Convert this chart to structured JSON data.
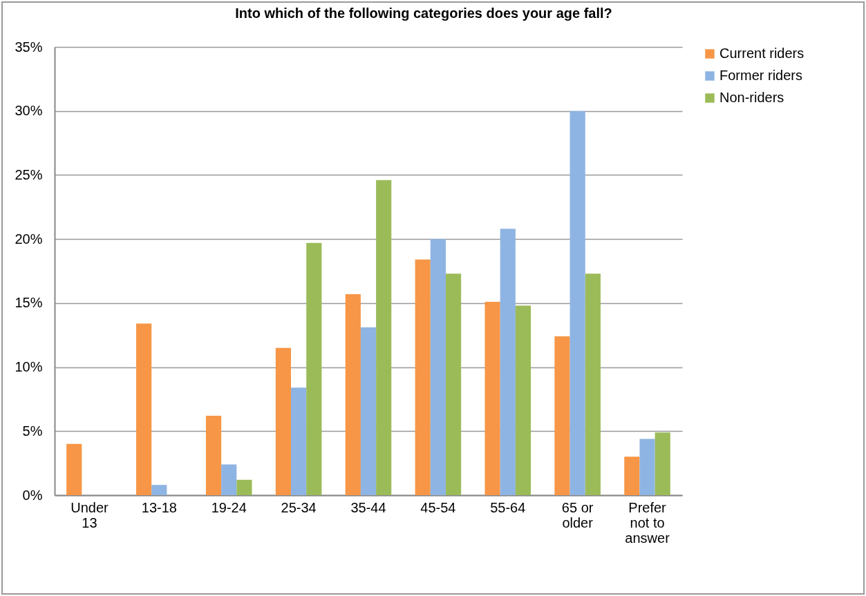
{
  "chart_data": {
    "type": "bar",
    "title": "Into which of the following  categories does your age fall?",
    "categories": [
      "Under 13",
      "13-18",
      "19-24",
      "25-34",
      "35-44",
      "45-54",
      "55-64",
      "65 or older",
      "Prefer not to answer"
    ],
    "series": [
      {
        "name": "Current riders",
        "color": "#f79646",
        "values": [
          4.0,
          13.4,
          6.2,
          11.5,
          15.7,
          18.4,
          15.1,
          12.4,
          3.0
        ]
      },
      {
        "name": "Former riders",
        "color": "#8eb4e3",
        "values": [
          0,
          0.8,
          2.4,
          8.4,
          13.1,
          20.0,
          20.8,
          30.0,
          4.4
        ]
      },
      {
        "name": "Non-riders",
        "color": "#9bbb59",
        "values": [
          0,
          0,
          1.2,
          19.7,
          24.6,
          17.3,
          14.8,
          17.3,
          4.9
        ]
      }
    ],
    "ylim": [
      0,
      35
    ],
    "yticks": [
      {
        "value": 0,
        "label": "0%"
      },
      {
        "value": 5,
        "label": "5%"
      },
      {
        "value": 10,
        "label": "10%"
      },
      {
        "value": 15,
        "label": "15%"
      },
      {
        "value": 20,
        "label": "20%"
      },
      {
        "value": 25,
        "label": "25%"
      },
      {
        "value": 30,
        "label": "30%"
      },
      {
        "value": 35,
        "label": "35%"
      }
    ],
    "grid": "y",
    "legend": "right"
  }
}
